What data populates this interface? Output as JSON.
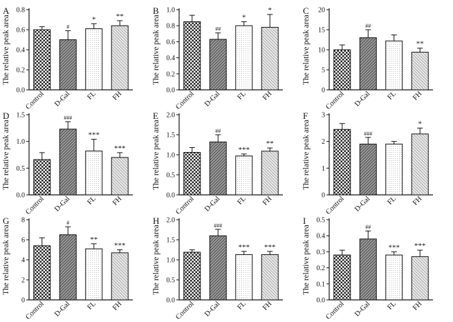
{
  "figure": {
    "categories": [
      "Control",
      "D-Gal",
      "FL",
      "FH"
    ],
    "panels": [
      {
        "letter": "A",
        "type": "bar",
        "ylabel": "The relative peak area",
        "ylim": [
          0,
          0.8
        ],
        "ticks": [
          "0.0",
          "0.2",
          "0.4",
          "0.6",
          "0.8"
        ],
        "tick_values": [
          0,
          0.2,
          0.4,
          0.6,
          0.8
        ],
        "values": [
          0.6,
          0.5,
          0.61,
          0.64
        ],
        "errors": [
          0.03,
          0.09,
          0.05,
          0.05
        ],
        "sig": [
          "",
          "#",
          "*",
          "**"
        ]
      },
      {
        "letter": "B",
        "type": "bar",
        "ylabel": "The relative peak area",
        "ylim": [
          0,
          1.0
        ],
        "ticks": [
          "0.0",
          "0.2",
          "0.4",
          "0.6",
          "0.8",
          "1.0"
        ],
        "tick_values": [
          0,
          0.2,
          0.4,
          0.6,
          0.8,
          1.0
        ],
        "values": [
          0.85,
          0.63,
          0.8,
          0.78
        ],
        "errors": [
          0.08,
          0.08,
          0.05,
          0.16
        ],
        "sig": [
          "",
          "##",
          "*",
          "*"
        ]
      },
      {
        "letter": "C",
        "type": "bar",
        "ylabel": "The relative peak area",
        "ylim": [
          0,
          20
        ],
        "ticks": [
          "0",
          "5",
          "10",
          "15",
          "20"
        ],
        "tick_values": [
          0,
          5,
          10,
          15,
          20
        ],
        "values": [
          10.0,
          13.0,
          12.2,
          9.4
        ],
        "errors": [
          1.2,
          2.0,
          1.5,
          1.0
        ],
        "sig": [
          "",
          "##",
          "",
          "**"
        ]
      },
      {
        "letter": "D",
        "type": "bar",
        "ylabel": "The relative peak area",
        "ylim": [
          0,
          1.5
        ],
        "ticks": [
          "0.0",
          "0.5",
          "1.0",
          "1.5"
        ],
        "tick_values": [
          0,
          0.5,
          1.0,
          1.5
        ],
        "values": [
          0.66,
          1.23,
          0.82,
          0.7
        ],
        "errors": [
          0.13,
          0.14,
          0.22,
          0.09
        ],
        "sig": [
          "",
          "###",
          "***",
          "***"
        ]
      },
      {
        "letter": "E",
        "type": "bar",
        "ylabel": "The relative peak area",
        "ylim": [
          0,
          2.0
        ],
        "ticks": [
          "0.0",
          "0.5",
          "1.0",
          "1.5",
          "2.0"
        ],
        "tick_values": [
          0,
          0.5,
          1.0,
          1.5,
          2.0
        ],
        "values": [
          1.06,
          1.32,
          0.97,
          1.09
        ],
        "errors": [
          0.12,
          0.18,
          0.05,
          0.08
        ],
        "sig": [
          "",
          "##",
          "***",
          "**"
        ]
      },
      {
        "letter": "F",
        "type": "bar",
        "ylabel": "The relative peak area",
        "ylim": [
          0,
          3
        ],
        "ticks": [
          "0",
          "1",
          "2",
          "3"
        ],
        "tick_values": [
          0,
          1,
          2,
          3
        ],
        "values": [
          2.45,
          1.9,
          1.9,
          2.28
        ],
        "errors": [
          0.22,
          0.25,
          0.1,
          0.22
        ],
        "sig": [
          "",
          "###",
          "",
          "*"
        ]
      },
      {
        "letter": "G",
        "type": "bar",
        "ylabel": "The relative peak area",
        "ylim": [
          0,
          8
        ],
        "ticks": [
          "0",
          "2",
          "4",
          "6",
          "8"
        ],
        "tick_values": [
          0,
          2,
          4,
          6,
          8
        ],
        "values": [
          5.4,
          6.5,
          5.1,
          4.7
        ],
        "errors": [
          0.8,
          0.8,
          0.5,
          0.3
        ],
        "sig": [
          "",
          "#",
          "**",
          "***"
        ]
      },
      {
        "letter": "H",
        "type": "bar",
        "ylabel": "The relative peak area",
        "ylim": [
          0,
          2.0
        ],
        "ticks": [
          "0.0",
          "0.5",
          "1.0",
          "1.5",
          "2.0"
        ],
        "tick_values": [
          0,
          0.5,
          1.0,
          1.5,
          2.0
        ],
        "values": [
          1.19,
          1.6,
          1.13,
          1.13
        ],
        "errors": [
          0.06,
          0.16,
          0.08,
          0.08
        ],
        "sig": [
          "",
          "###",
          "***",
          "***"
        ]
      },
      {
        "letter": "I",
        "type": "bar",
        "ylabel": "The relative peak area",
        "ylim": [
          0,
          0.5
        ],
        "ticks": [
          "0.0",
          "0.1",
          "0.2",
          "0.3",
          "0.4",
          "0.5"
        ],
        "tick_values": [
          0,
          0.1,
          0.2,
          0.3,
          0.4,
          0.5
        ],
        "values": [
          0.28,
          0.38,
          0.28,
          0.27
        ],
        "errors": [
          0.03,
          0.05,
          0.02,
          0.04
        ],
        "sig": [
          "",
          "##",
          "***",
          "***"
        ]
      }
    ]
  },
  "chart_data": [
    {
      "type": "bar",
      "title": "A",
      "categories": [
        "Control",
        "D-Gal",
        "FL",
        "FH"
      ],
      "values": [
        0.6,
        0.5,
        0.61,
        0.64
      ],
      "ylabel": "The relative peak area",
      "ylim": [
        0,
        0.8
      ]
    },
    {
      "type": "bar",
      "title": "B",
      "categories": [
        "Control",
        "D-Gal",
        "FL",
        "FH"
      ],
      "values": [
        0.85,
        0.63,
        0.8,
        0.78
      ],
      "ylabel": "The relative peak area",
      "ylim": [
        0,
        1.0
      ]
    },
    {
      "type": "bar",
      "title": "C",
      "categories": [
        "Control",
        "D-Gal",
        "FL",
        "FH"
      ],
      "values": [
        10.0,
        13.0,
        12.2,
        9.4
      ],
      "ylabel": "The relative peak area",
      "ylim": [
        0,
        20
      ]
    },
    {
      "type": "bar",
      "title": "D",
      "categories": [
        "Control",
        "D-Gal",
        "FL",
        "FH"
      ],
      "values": [
        0.66,
        1.23,
        0.82,
        0.7
      ],
      "ylabel": "The relative peak area",
      "ylim": [
        0,
        1.5
      ]
    },
    {
      "type": "bar",
      "title": "E",
      "categories": [
        "Control",
        "D-Gal",
        "FL",
        "FH"
      ],
      "values": [
        1.06,
        1.32,
        0.97,
        1.09
      ],
      "ylabel": "The relative peak area",
      "ylim": [
        0,
        2.0
      ]
    },
    {
      "type": "bar",
      "title": "F",
      "categories": [
        "Control",
        "D-Gal",
        "FL",
        "FH"
      ],
      "values": [
        2.45,
        1.9,
        1.9,
        2.28
      ],
      "ylabel": "The relative peak area",
      "ylim": [
        0,
        3
      ]
    },
    {
      "type": "bar",
      "title": "G",
      "categories": [
        "Control",
        "D-Gal",
        "FL",
        "FH"
      ],
      "values": [
        5.4,
        6.5,
        5.1,
        4.7
      ],
      "ylabel": "The relative peak area",
      "ylim": [
        0,
        8
      ]
    },
    {
      "type": "bar",
      "title": "H",
      "categories": [
        "Control",
        "D-Gal",
        "FL",
        "FH"
      ],
      "values": [
        1.19,
        1.6,
        1.13,
        1.13
      ],
      "ylabel": "The relative peak area",
      "ylim": [
        0,
        2.0
      ]
    },
    {
      "type": "bar",
      "title": "I",
      "categories": [
        "Control",
        "D-Gal",
        "FL",
        "FH"
      ],
      "values": [
        0.28,
        0.38,
        0.28,
        0.27
      ],
      "ylabel": "The relative peak area",
      "ylim": [
        0,
        0.5
      ]
    }
  ]
}
